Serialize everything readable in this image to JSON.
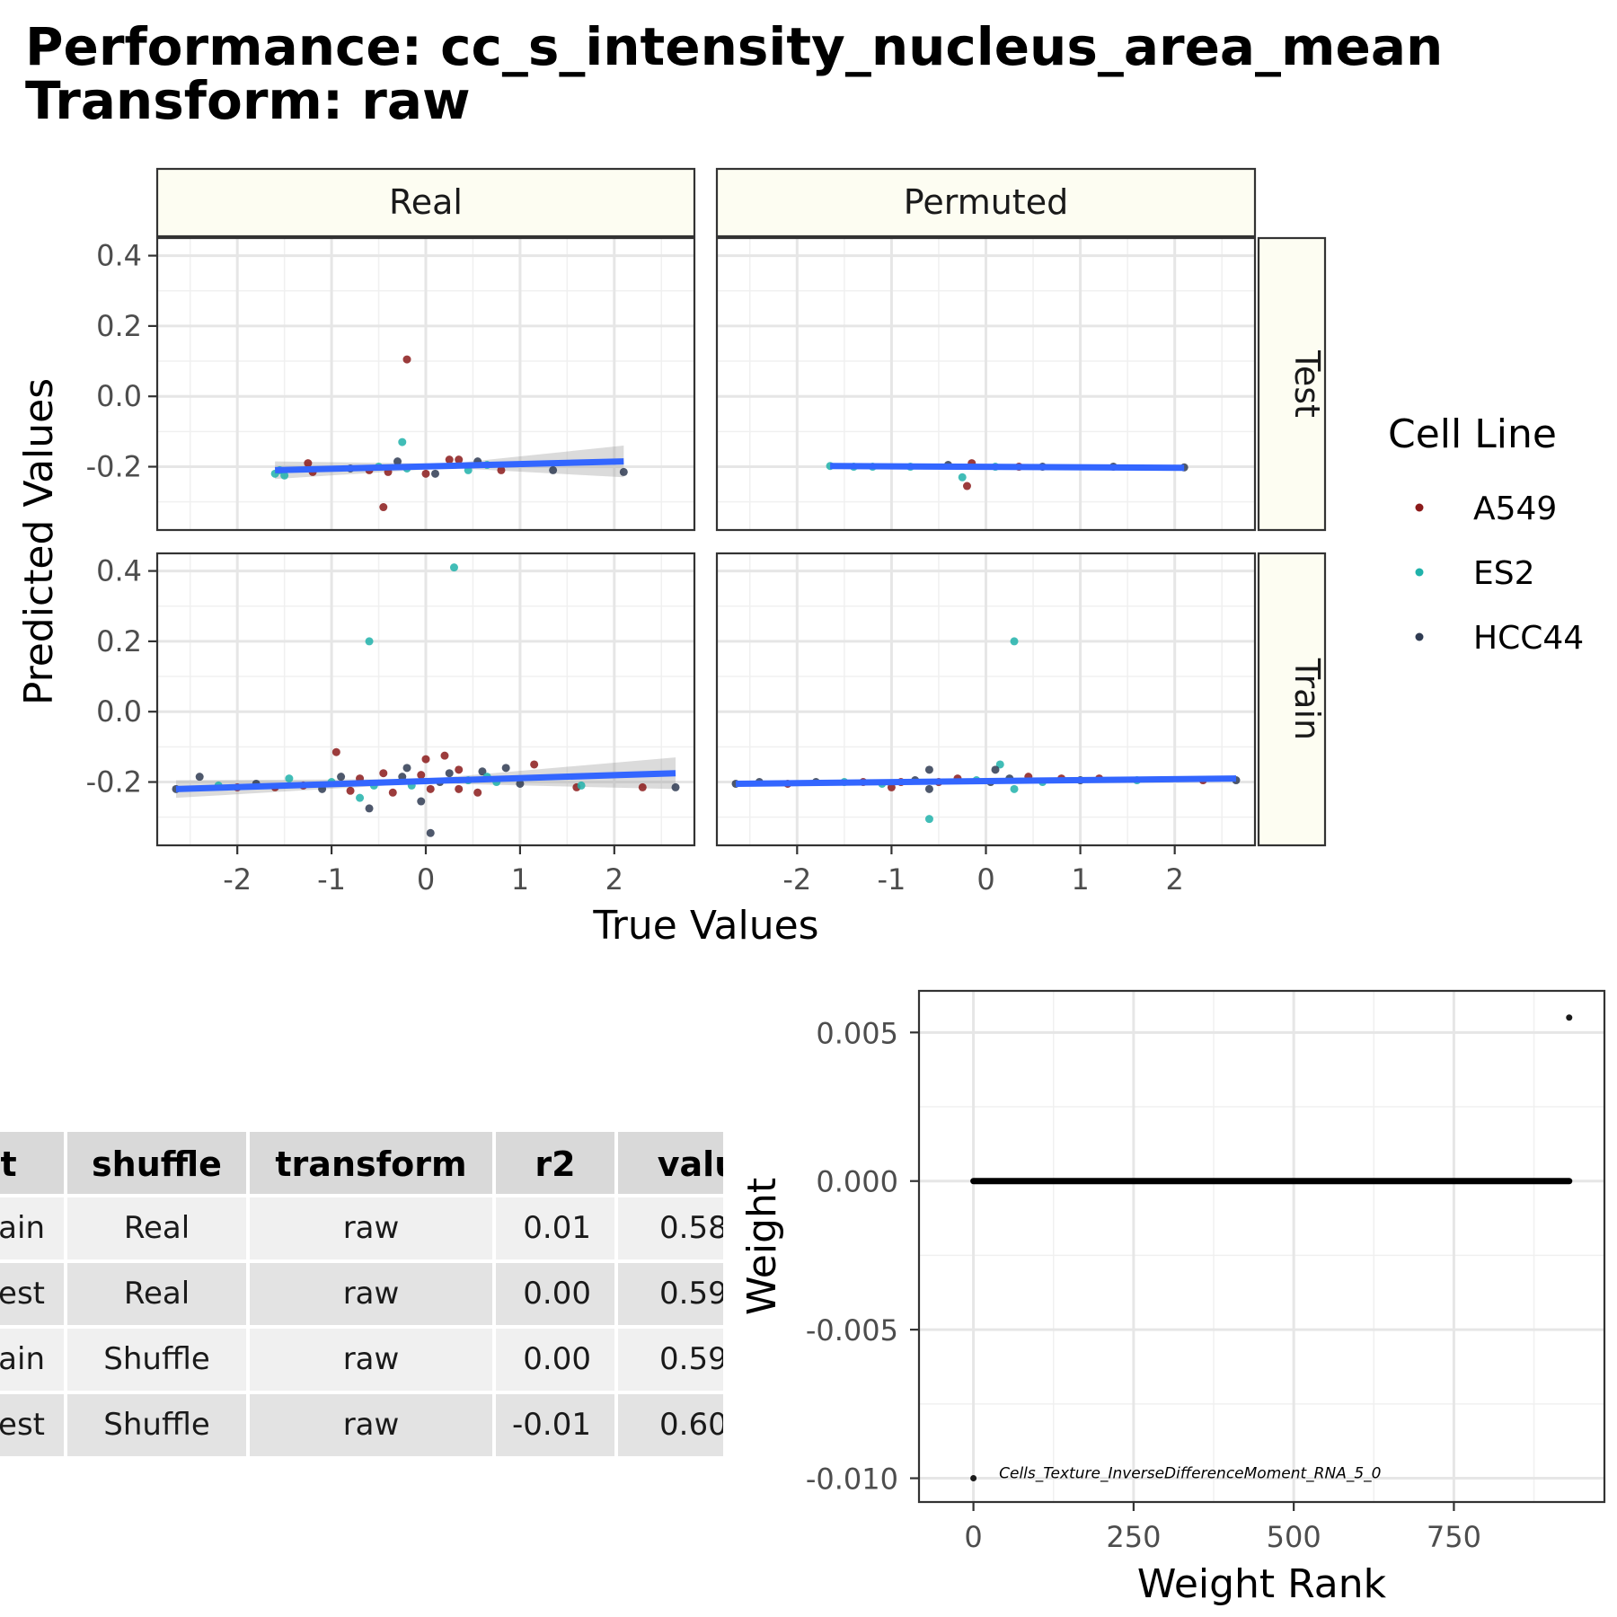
{
  "title": {
    "line1": "Performance: cc_s_intensity_nucleus_area_mean",
    "line2": "Transform: raw"
  },
  "chart_data": [
    {
      "type": "scatter",
      "facet_columns": [
        "Real",
        "Permuted"
      ],
      "facet_rows": [
        "Test",
        "Train"
      ],
      "xlabel": "True Values",
      "ylabel": "Predicted Values",
      "xlim": [
        -2.85,
        2.85
      ],
      "ylim_top_row": [
        -0.38,
        0.45
      ],
      "ylim_bottom_row": [
        -0.38,
        0.45
      ],
      "xticks": [
        -2,
        -1,
        0,
        1,
        2
      ],
      "xtick_labels": [
        "-2",
        "-1",
        "0",
        "1",
        "2"
      ],
      "yticks": [
        -0.2,
        0.0,
        0.2,
        0.4
      ],
      "ytick_labels": [
        "-0.2",
        "0.0",
        "0.2",
        "0.4"
      ],
      "grid": true,
      "legend": {
        "title": "Cell Line",
        "placement": "right",
        "entries": [
          {
            "name": "A549",
            "color": "#8B1A1A"
          },
          {
            "name": "ES2",
            "color": "#20B2AA"
          },
          {
            "name": "HCC44",
            "color": "#2F3B52"
          }
        ]
      },
      "fit_line_color": "#3366FF",
      "panels": [
        {
          "col": "Real",
          "row": "Test",
          "fit": {
            "x": [
              -1.6,
              2.1
            ],
            "y": [
              -0.21,
              -0.185
            ]
          },
          "points": [
            {
              "x": -0.2,
              "y": 0.105,
              "series": "A549"
            },
            {
              "x": -0.45,
              "y": -0.315,
              "series": "A549"
            },
            {
              "x": -0.25,
              "y": -0.13,
              "series": "ES2"
            },
            {
              "x": -1.25,
              "y": -0.19,
              "series": "A549"
            },
            {
              "x": -1.6,
              "y": -0.22,
              "series": "ES2"
            },
            {
              "x": -1.55,
              "y": -0.21,
              "series": "ES2"
            },
            {
              "x": -1.5,
              "y": -0.225,
              "series": "ES2"
            },
            {
              "x": -1.2,
              "y": -0.215,
              "series": "A549"
            },
            {
              "x": -0.8,
              "y": -0.205,
              "series": "HCC44"
            },
            {
              "x": -0.6,
              "y": -0.21,
              "series": "A549"
            },
            {
              "x": -0.5,
              "y": -0.2,
              "series": "ES2"
            },
            {
              "x": -0.3,
              "y": -0.185,
              "series": "HCC44"
            },
            {
              "x": -0.2,
              "y": -0.205,
              "series": "ES2"
            },
            {
              "x": 0.0,
              "y": -0.22,
              "series": "A549"
            },
            {
              "x": 0.1,
              "y": -0.22,
              "series": "HCC44"
            },
            {
              "x": 0.25,
              "y": -0.18,
              "series": "A549"
            },
            {
              "x": 0.35,
              "y": -0.18,
              "series": "A549"
            },
            {
              "x": 0.45,
              "y": -0.21,
              "series": "ES2"
            },
            {
              "x": 0.55,
              "y": -0.185,
              "series": "HCC44"
            },
            {
              "x": 0.65,
              "y": -0.195,
              "series": "ES2"
            },
            {
              "x": 0.8,
              "y": -0.21,
              "series": "A549"
            },
            {
              "x": 1.35,
              "y": -0.21,
              "series": "HCC44"
            },
            {
              "x": 2.1,
              "y": -0.215,
              "series": "HCC44"
            },
            {
              "x": -0.4,
              "y": -0.215,
              "series": "A549"
            }
          ]
        },
        {
          "col": "Permuted",
          "row": "Test",
          "fit": {
            "x": [
              -1.65,
              2.1
            ],
            "y": [
              -0.198,
              -0.203
            ]
          },
          "points": [
            {
              "x": -0.2,
              "y": -0.255,
              "series": "A549"
            },
            {
              "x": -0.25,
              "y": -0.23,
              "series": "ES2"
            },
            {
              "x": -1.65,
              "y": -0.198,
              "series": "ES2"
            },
            {
              "x": -1.4,
              "y": -0.2,
              "series": "ES2"
            },
            {
              "x": -1.2,
              "y": -0.2,
              "series": "ES2"
            },
            {
              "x": -0.8,
              "y": -0.2,
              "series": "ES2"
            },
            {
              "x": -0.4,
              "y": -0.195,
              "series": "HCC44"
            },
            {
              "x": -0.15,
              "y": -0.19,
              "series": "A549"
            },
            {
              "x": 0.1,
              "y": -0.2,
              "series": "ES2"
            },
            {
              "x": 0.35,
              "y": -0.2,
              "series": "A549"
            },
            {
              "x": 0.6,
              "y": -0.2,
              "series": "HCC44"
            },
            {
              "x": 1.35,
              "y": -0.2,
              "series": "HCC44"
            },
            {
              "x": 2.1,
              "y": -0.202,
              "series": "HCC44"
            }
          ]
        },
        {
          "col": "Real",
          "row": "Train",
          "fit": {
            "x": [
              -2.65,
              2.65
            ],
            "y": [
              -0.22,
              -0.175
            ]
          },
          "points": [
            {
              "x": 0.3,
              "y": 0.41,
              "series": "ES2"
            },
            {
              "x": -0.6,
              "y": 0.2,
              "series": "ES2"
            },
            {
              "x": -0.95,
              "y": -0.115,
              "series": "A549"
            },
            {
              "x": 0.0,
              "y": -0.135,
              "series": "A549"
            },
            {
              "x": 0.2,
              "y": -0.125,
              "series": "A549"
            },
            {
              "x": 1.15,
              "y": -0.15,
              "series": "A549"
            },
            {
              "x": 0.85,
              "y": -0.16,
              "series": "HCC44"
            },
            {
              "x": 0.6,
              "y": -0.17,
              "series": "HCC44"
            },
            {
              "x": 0.35,
              "y": -0.165,
              "series": "A549"
            },
            {
              "x": -0.2,
              "y": -0.16,
              "series": "HCC44"
            },
            {
              "x": -0.6,
              "y": -0.275,
              "series": "HCC44"
            },
            {
              "x": 0.05,
              "y": -0.345,
              "series": "HCC44"
            },
            {
              "x": -0.7,
              "y": -0.245,
              "series": "ES2"
            },
            {
              "x": -0.05,
              "y": -0.255,
              "series": "HCC44"
            },
            {
              "x": -2.65,
              "y": -0.22,
              "series": "HCC44"
            },
            {
              "x": -2.4,
              "y": -0.185,
              "series": "HCC44"
            },
            {
              "x": -2.2,
              "y": -0.21,
              "series": "ES2"
            },
            {
              "x": -2.0,
              "y": -0.215,
              "series": "A549"
            },
            {
              "x": -1.8,
              "y": -0.205,
              "series": "HCC44"
            },
            {
              "x": -1.6,
              "y": -0.215,
              "series": "A549"
            },
            {
              "x": -1.45,
              "y": -0.19,
              "series": "ES2"
            },
            {
              "x": -1.3,
              "y": -0.21,
              "series": "A549"
            },
            {
              "x": -1.1,
              "y": -0.22,
              "series": "HCC44"
            },
            {
              "x": -1.0,
              "y": -0.2,
              "series": "ES2"
            },
            {
              "x": -0.9,
              "y": -0.185,
              "series": "HCC44"
            },
            {
              "x": -0.8,
              "y": -0.225,
              "series": "A549"
            },
            {
              "x": -0.7,
              "y": -0.19,
              "series": "A549"
            },
            {
              "x": -0.55,
              "y": -0.21,
              "series": "ES2"
            },
            {
              "x": -0.45,
              "y": -0.175,
              "series": "A549"
            },
            {
              "x": -0.35,
              "y": -0.23,
              "series": "A549"
            },
            {
              "x": -0.25,
              "y": -0.185,
              "series": "HCC44"
            },
            {
              "x": -0.15,
              "y": -0.21,
              "series": "ES2"
            },
            {
              "x": -0.05,
              "y": -0.18,
              "series": "A549"
            },
            {
              "x": 0.05,
              "y": -0.22,
              "series": "A549"
            },
            {
              "x": 0.15,
              "y": -0.2,
              "series": "HCC44"
            },
            {
              "x": 0.25,
              "y": -0.175,
              "series": "HCC44"
            },
            {
              "x": 0.35,
              "y": -0.22,
              "series": "A549"
            },
            {
              "x": 0.45,
              "y": -0.195,
              "series": "ES2"
            },
            {
              "x": 0.55,
              "y": -0.23,
              "series": "A549"
            },
            {
              "x": 0.65,
              "y": -0.185,
              "series": "ES2"
            },
            {
              "x": 0.75,
              "y": -0.2,
              "series": "ES2"
            },
            {
              "x": 1.0,
              "y": -0.205,
              "series": "HCC44"
            },
            {
              "x": 1.6,
              "y": -0.215,
              "series": "A549"
            },
            {
              "x": 1.65,
              "y": -0.21,
              "series": "ES2"
            },
            {
              "x": 2.3,
              "y": -0.215,
              "series": "A549"
            },
            {
              "x": 2.65,
              "y": -0.215,
              "series": "HCC44"
            }
          ]
        },
        {
          "col": "Permuted",
          "row": "Train",
          "fit": {
            "x": [
              -2.65,
              2.65
            ],
            "y": [
              -0.205,
              -0.19
            ]
          },
          "points": [
            {
              "x": 0.3,
              "y": 0.2,
              "series": "ES2"
            },
            {
              "x": -0.6,
              "y": -0.305,
              "series": "ES2"
            },
            {
              "x": -0.6,
              "y": -0.165,
              "series": "HCC44"
            },
            {
              "x": 0.15,
              "y": -0.15,
              "series": "ES2"
            },
            {
              "x": 0.1,
              "y": -0.165,
              "series": "HCC44"
            },
            {
              "x": -1.0,
              "y": -0.215,
              "series": "A549"
            },
            {
              "x": -0.6,
              "y": -0.22,
              "series": "HCC44"
            },
            {
              "x": 0.3,
              "y": -0.22,
              "series": "ES2"
            },
            {
              "x": -2.65,
              "y": -0.205,
              "series": "HCC44"
            },
            {
              "x": -2.4,
              "y": -0.2,
              "series": "HCC44"
            },
            {
              "x": -2.1,
              "y": -0.205,
              "series": "A549"
            },
            {
              "x": -1.8,
              "y": -0.2,
              "series": "HCC44"
            },
            {
              "x": -1.5,
              "y": -0.2,
              "series": "ES2"
            },
            {
              "x": -1.3,
              "y": -0.2,
              "series": "A549"
            },
            {
              "x": -1.1,
              "y": -0.205,
              "series": "ES2"
            },
            {
              "x": -0.9,
              "y": -0.2,
              "series": "A549"
            },
            {
              "x": -0.75,
              "y": -0.195,
              "series": "HCC44"
            },
            {
              "x": -0.5,
              "y": -0.2,
              "series": "A549"
            },
            {
              "x": -0.3,
              "y": -0.19,
              "series": "A549"
            },
            {
              "x": -0.1,
              "y": -0.195,
              "series": "ES2"
            },
            {
              "x": 0.05,
              "y": -0.2,
              "series": "HCC44"
            },
            {
              "x": 0.25,
              "y": -0.19,
              "series": "HCC44"
            },
            {
              "x": 0.45,
              "y": -0.185,
              "series": "A549"
            },
            {
              "x": 0.6,
              "y": -0.2,
              "series": "ES2"
            },
            {
              "x": 0.8,
              "y": -0.19,
              "series": "A549"
            },
            {
              "x": 1.0,
              "y": -0.195,
              "series": "HCC44"
            },
            {
              "x": 1.2,
              "y": -0.19,
              "series": "A549"
            },
            {
              "x": 1.6,
              "y": -0.195,
              "series": "ES2"
            },
            {
              "x": 2.3,
              "y": -0.195,
              "series": "A549"
            },
            {
              "x": 2.65,
              "y": -0.195,
              "series": "HCC44"
            }
          ]
        }
      ]
    },
    {
      "type": "table",
      "columns": [
        "fit",
        "shuffle",
        "transform",
        "r2",
        "value"
      ],
      "visible_column_text": [
        "fit",
        "shuffle",
        "transform",
        "r2",
        "valu"
      ],
      "rows": [
        {
          "fit": "ain",
          "shuffle": "Real",
          "transform": "raw",
          "r2": "0.01",
          "value": "0.58"
        },
        {
          "fit": "est",
          "shuffle": "Real",
          "transform": "raw",
          "r2": "0.00",
          "value": "0.59"
        },
        {
          "fit": "ain",
          "shuffle": "Shuffle",
          "transform": "raw",
          "r2": "0.00",
          "value": "0.59"
        },
        {
          "fit": "est",
          "shuffle": "Shuffle",
          "transform": "raw",
          "r2": "-0.01",
          "value": "0.60"
        }
      ]
    },
    {
      "type": "scatter",
      "xlabel": "Weight Rank",
      "ylabel": "Weight",
      "xlim": [
        -85,
        985
      ],
      "ylim": [
        -0.0108,
        0.0064
      ],
      "xticks": [
        0,
        250,
        500,
        750
      ],
      "xtick_labels": [
        "0",
        "250",
        "500",
        "750"
      ],
      "yticks": [
        -0.01,
        -0.005,
        0.0,
        0.005
      ],
      "ytick_labels": [
        "-0.010",
        "-0.005",
        "0.000",
        "0.005"
      ],
      "grid": true,
      "series": [
        {
          "values_x_range": [
            0,
            930
          ],
          "y": 0.0,
          "description_only": false
        }
      ],
      "line_segment": {
        "x": [
          0,
          930
        ],
        "y": [
          0.0,
          0.0
        ]
      },
      "outliers": [
        {
          "x": 0,
          "y": -0.01
        },
        {
          "x": 930,
          "y": 0.0055
        }
      ],
      "annotation": {
        "text": "Cells_Texture_InverseDifferenceMoment_RNA_5_0",
        "x": 40,
        "y": -0.00985
      }
    }
  ]
}
